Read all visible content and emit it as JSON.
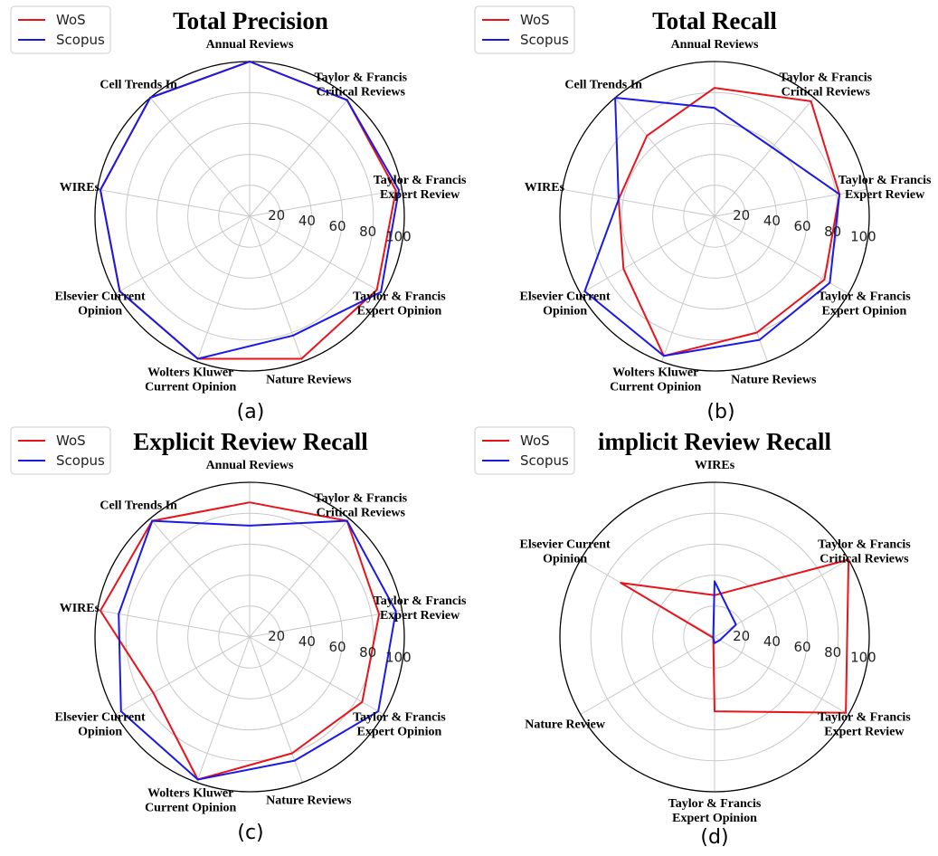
{
  "chart_data": [
    {
      "type": "radar",
      "title": "Total Precision",
      "panel_label": "(a)",
      "axes": [
        "Annual Reviews",
        "Taylor & Francis\nCritical Reviews",
        "Taylor & Francis\nExpert Review",
        "Taylor & Francis\nExpert Opinion",
        "Nature Reviews",
        "Wolters Kluwer\nCurrent Opinion",
        "Elsevier Current\nOpinion",
        "WIREs",
        "Cell Trends In"
      ],
      "rticks": [
        "20",
        "40",
        "60",
        "80",
        "100"
      ],
      "rlim": [
        0,
        100
      ],
      "legend": "top-left",
      "grid": true,
      "series": [
        {
          "name": "WoS",
          "color": "#e8141c",
          "values": [
            100,
            98,
            96,
            95,
            98,
            98,
            97,
            98,
            100
          ]
        },
        {
          "name": "Scopus",
          "color": "#1a1ae6",
          "values": [
            100,
            98,
            98,
            98,
            82,
            98,
            97,
            98,
            100
          ]
        }
      ]
    },
    {
      "type": "radar",
      "title": "Total Recall",
      "panel_label": "(b)",
      "axes": [
        "Annual Reviews",
        "Taylor & Francis\nCritical Reviews",
        "Taylor & Francis\nExpert Review",
        "Taylor & Francis\nExpert Opinion",
        "Nature Reviews",
        "Wolters Kluwer\nCurrent Opinion",
        "Elsevier Current\nOpinion",
        "WIREs",
        "Cell Trends In"
      ],
      "rticks": [
        "20",
        "40",
        "60",
        "80",
        "100"
      ],
      "rlim": [
        0,
        100
      ],
      "legend": "top-left",
      "grid": true,
      "series": [
        {
          "name": "WoS",
          "color": "#e8141c",
          "values": [
            83,
            97,
            82,
            82,
            80,
            96,
            68,
            63,
            68
          ]
        },
        {
          "name": "Scopus",
          "color": "#1a1ae6",
          "values": [
            70,
            58,
            82,
            86,
            85,
            96,
            97,
            63,
            100
          ]
        }
      ]
    },
    {
      "type": "radar",
      "title": "Explicit Review Recall",
      "panel_label": "(c)",
      "axes": [
        "Annual Reviews",
        "Taylor & Francis\nCritical Reviews",
        "Taylor & Francis\nExpert Review",
        "Taylor & Francis\nExpert Opinion",
        "Nature Reviews",
        "Wolters Kluwer\nCurrent Opinion",
        "Elsevier Current\nOpinion",
        "WIREs",
        "Cell Trends In"
      ],
      "rticks": [
        "20",
        "40",
        "60",
        "80",
        "100"
      ],
      "rlim": [
        0,
        100
      ],
      "legend": "top-left",
      "grid": true,
      "series": [
        {
          "name": "WoS",
          "color": "#e8141c",
          "values": [
            87,
            98,
            85,
            84,
            80,
            98,
            72,
            98,
            98
          ]
        },
        {
          "name": "Scopus",
          "color": "#1a1ae6",
          "values": [
            72,
            98,
            96,
            96,
            85,
            98,
            96,
            86,
            98
          ]
        }
      ]
    },
    {
      "type": "radar",
      "title": "implicit Review Recall",
      "panel_label": "(d)",
      "axes": [
        "WIREs",
        "Taylor & Francis\nCritical Reviews",
        "Taylor & Francis\nExpert Review",
        "Taylor & Francis\nExpert Opinion",
        "Nature Review",
        "Elsevier Current\nOpinion"
      ],
      "rticks": [
        "20",
        "40",
        "60",
        "80",
        "100"
      ],
      "rlim": [
        0,
        100
      ],
      "legend": "top-left",
      "grid": true,
      "series": [
        {
          "name": "WoS",
          "color": "#e8141c",
          "values": [
            27,
            100,
            98,
            48,
            1,
            70
          ]
        },
        {
          "name": "Scopus",
          "color": "#1a1ae6",
          "values": [
            36,
            16,
            4,
            4,
            1,
            1
          ]
        }
      ]
    }
  ]
}
